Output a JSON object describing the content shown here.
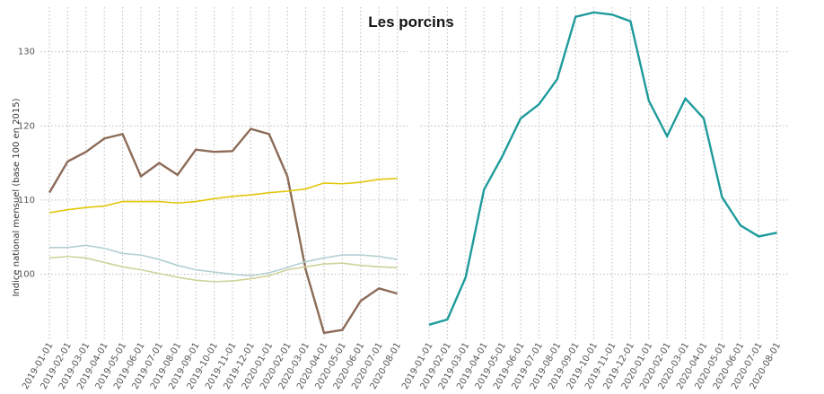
{
  "chart_data": [
    {
      "type": "line",
      "title": "Les porcins",
      "y_label": "Indice national mensuel (base 100 en 2015)",
      "categories": [
        "2019-01-01",
        "2019-02-01",
        "2019-03-01",
        "2019-04-01",
        "2019-05-01",
        "2019-06-01",
        "2019-07-01",
        "2019-08-01",
        "2019-09-01",
        "2019-10-01",
        "2019-11-01",
        "2019-12-01",
        "2020-01-01",
        "2020-02-01",
        "2020-03-01",
        "2020-04-01",
        "2020-05-01",
        "2020-06-01",
        "2020-07-01",
        "2020-08-01"
      ],
      "series": [
        {
          "color": "#8c6b57",
          "values": [
            111.0,
            115.2,
            116.5,
            118.3,
            118.9,
            113.2,
            115.0,
            113.4,
            116.8,
            116.5,
            116.6,
            119.6,
            118.9,
            113.2,
            100.6,
            92.1,
            92.5,
            96.4,
            98.1,
            97.4
          ]
        },
        {
          "color": "#e2c60a",
          "values": [
            108.3,
            108.7,
            109.0,
            109.2,
            109.8,
            109.8,
            109.8,
            109.6,
            109.8,
            110.2,
            110.5,
            110.7,
            111.0,
            111.2,
            111.5,
            112.3,
            112.2,
            112.4,
            112.8,
            112.9
          ]
        },
        {
          "color": "#b3cfd2",
          "values": [
            103.6,
            103.6,
            103.9,
            103.5,
            102.8,
            102.6,
            102.0,
            101.2,
            100.6,
            100.3,
            100.0,
            99.8,
            100.2,
            100.9,
            101.7,
            102.2,
            102.6,
            102.6,
            102.4,
            102.0
          ]
        },
        {
          "color": "#cfd29a",
          "values": [
            102.2,
            102.4,
            102.2,
            101.6,
            101.0,
            100.6,
            100.1,
            99.6,
            99.2,
            99.0,
            99.1,
            99.4,
            99.8,
            100.6,
            101.0,
            101.4,
            101.5,
            101.2,
            101.0,
            100.9
          ]
        }
      ],
      "ylim": [
        91,
        136
      ],
      "yticks": [
        100,
        110,
        120,
        130
      ],
      "grid": true
    },
    {
      "type": "line",
      "categories": [
        "2019-01-01",
        "2019-02-01",
        "2019-03-01",
        "2019-04-01",
        "2019-05-01",
        "2019-06-01",
        "2019-07-01",
        "2019-08-01",
        "2019-09-01",
        "2019-10-01",
        "2019-11-01",
        "2019-12-01",
        "2020-01-01",
        "2020-02-01",
        "2020-03-01",
        "2020-04-01",
        "2020-05-01",
        "2020-06-01",
        "2020-07-01",
        "2020-08-01"
      ],
      "series": [
        {
          "color": "#1f9b9b",
          "values": [
            93.2,
            93.9,
            99.6,
            111.4,
            115.9,
            121.0,
            122.9,
            126.3,
            134.7,
            135.3,
            135.0,
            134.1,
            123.4,
            118.6,
            123.7,
            121.0,
            110.4,
            106.6,
            105.1,
            105.6
          ]
        }
      ],
      "ylim": [
        91,
        136
      ],
      "yticks": [
        100,
        110,
        120,
        130
      ],
      "grid": true
    }
  ]
}
